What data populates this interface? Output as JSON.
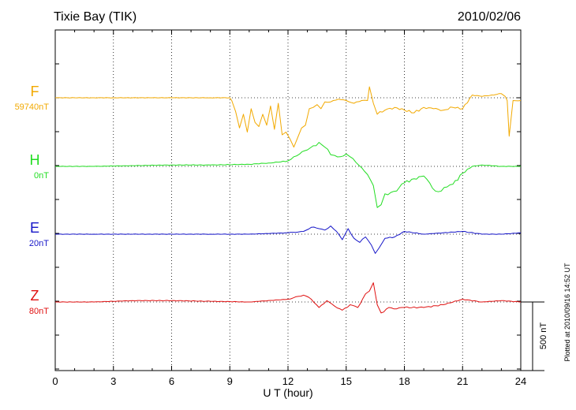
{
  "title": "Tixie Bay (TIK)",
  "date": "2010/02/06",
  "xlabel": "U T (hour)",
  "scale_label": "500 nT",
  "plotted_note": "Plotted at 2010/09/16 14:52 UT",
  "colors": {
    "F": "#f2a900",
    "H": "#22dd22",
    "E": "#1515c8",
    "Z": "#e01010"
  },
  "chart_data": {
    "type": "line",
    "x_range": [
      0,
      24
    ],
    "x_ticks": [
      "0",
      "3",
      "6",
      "9",
      "12",
      "15",
      "18",
      "21",
      "24"
    ],
    "grid": true,
    "y_scale_bar_nT": 500,
    "series": [
      {
        "name": "F",
        "offset_label": "59740nT",
        "x": [
          0,
          1,
          2,
          3,
          4,
          5,
          6,
          7,
          8,
          9,
          9.1,
          9.3,
          9.5,
          9.7,
          9.9,
          10.1,
          10.3,
          10.5,
          10.7,
          10.9,
          11.1,
          11.3,
          11.5,
          11.7,
          11.9,
          12.1,
          12.3,
          12.5,
          12.7,
          12.9,
          13.1,
          13.3,
          13.5,
          13.7,
          13.9,
          14.2,
          14.6,
          15.0,
          15.4,
          15.8,
          16.1,
          16.2,
          16.4,
          16.6,
          17.0,
          17.5,
          18.0,
          18.5,
          19.0,
          19.5,
          20.0,
          20.5,
          21.0,
          21.5,
          22.0,
          22.5,
          23.0,
          23.2,
          23.3,
          23.4,
          23.6,
          24
        ],
        "y": [
          0,
          0,
          0,
          0,
          0,
          0,
          0,
          0,
          0,
          0,
          -20,
          -100,
          -220,
          -120,
          -250,
          -80,
          -180,
          -210,
          -120,
          -200,
          -60,
          -230,
          -40,
          -270,
          -250,
          -300,
          -360,
          -290,
          -220,
          -200,
          -80,
          -70,
          -50,
          -80,
          -30,
          -30,
          -10,
          -20,
          -40,
          -20,
          -20,
          80,
          -40,
          -120,
          -90,
          -70,
          -90,
          -110,
          -70,
          -80,
          -90,
          -70,
          -80,
          20,
          10,
          20,
          30,
          10,
          -20,
          -280,
          -20,
          -20
        ]
      },
      {
        "name": "H",
        "offset_label": "0nT",
        "x": [
          0,
          2,
          4,
          6,
          8,
          10,
          11,
          11.5,
          12,
          12.3,
          12.6,
          13.0,
          13.3,
          13.6,
          13.9,
          14.2,
          14.4,
          14.7,
          15.0,
          15.2,
          15.5,
          15.8,
          16.1,
          16.4,
          16.6,
          16.8,
          17.0,
          17.3,
          17.6,
          18,
          18.5,
          19,
          19.3,
          19.6,
          19.9,
          20.2,
          20.5,
          21,
          21.5,
          22,
          23,
          24
        ],
        "y": [
          0,
          0,
          5,
          10,
          10,
          15,
          25,
          30,
          40,
          70,
          90,
          120,
          150,
          175,
          140,
          85,
          80,
          70,
          90,
          70,
          30,
          -10,
          -60,
          -140,
          -300,
          -280,
          -200,
          -190,
          -180,
          -120,
          -90,
          -70,
          -120,
          -180,
          -180,
          -150,
          -130,
          -50,
          0,
          10,
          0,
          0
        ]
      },
      {
        "name": "E",
        "offset_label": "20nT",
        "x": [
          0,
          2,
          4,
          6,
          8,
          10,
          12,
          12.8,
          13.2,
          13.6,
          13.9,
          14.2,
          14.5,
          14.8,
          15.1,
          15.4,
          15.7,
          16.0,
          16.3,
          16.5,
          16.7,
          17.0,
          17.5,
          18,
          19,
          20,
          21,
          22,
          23,
          24
        ],
        "y": [
          0,
          0,
          0,
          0,
          0,
          0,
          10,
          20,
          50,
          40,
          30,
          60,
          20,
          -40,
          40,
          -30,
          -60,
          -20,
          -80,
          -140,
          -100,
          -30,
          -20,
          20,
          0,
          10,
          20,
          0,
          0,
          10
        ]
      },
      {
        "name": "Z",
        "offset_label": "80nT",
        "x": [
          0,
          2,
          4,
          6,
          8,
          10,
          12,
          12.8,
          13.2,
          13.6,
          14.0,
          14.4,
          14.8,
          15.2,
          15.6,
          16.0,
          16.2,
          16.4,
          16.6,
          16.8,
          17.2,
          17.6,
          18,
          19,
          20,
          21,
          22,
          23,
          24
        ],
        "y": [
          0,
          0,
          10,
          10,
          5,
          0,
          20,
          50,
          20,
          -40,
          10,
          -30,
          -60,
          -20,
          -40,
          60,
          80,
          140,
          -20,
          -80,
          -40,
          -50,
          -40,
          -40,
          -20,
          20,
          0,
          10,
          0
        ]
      }
    ]
  }
}
